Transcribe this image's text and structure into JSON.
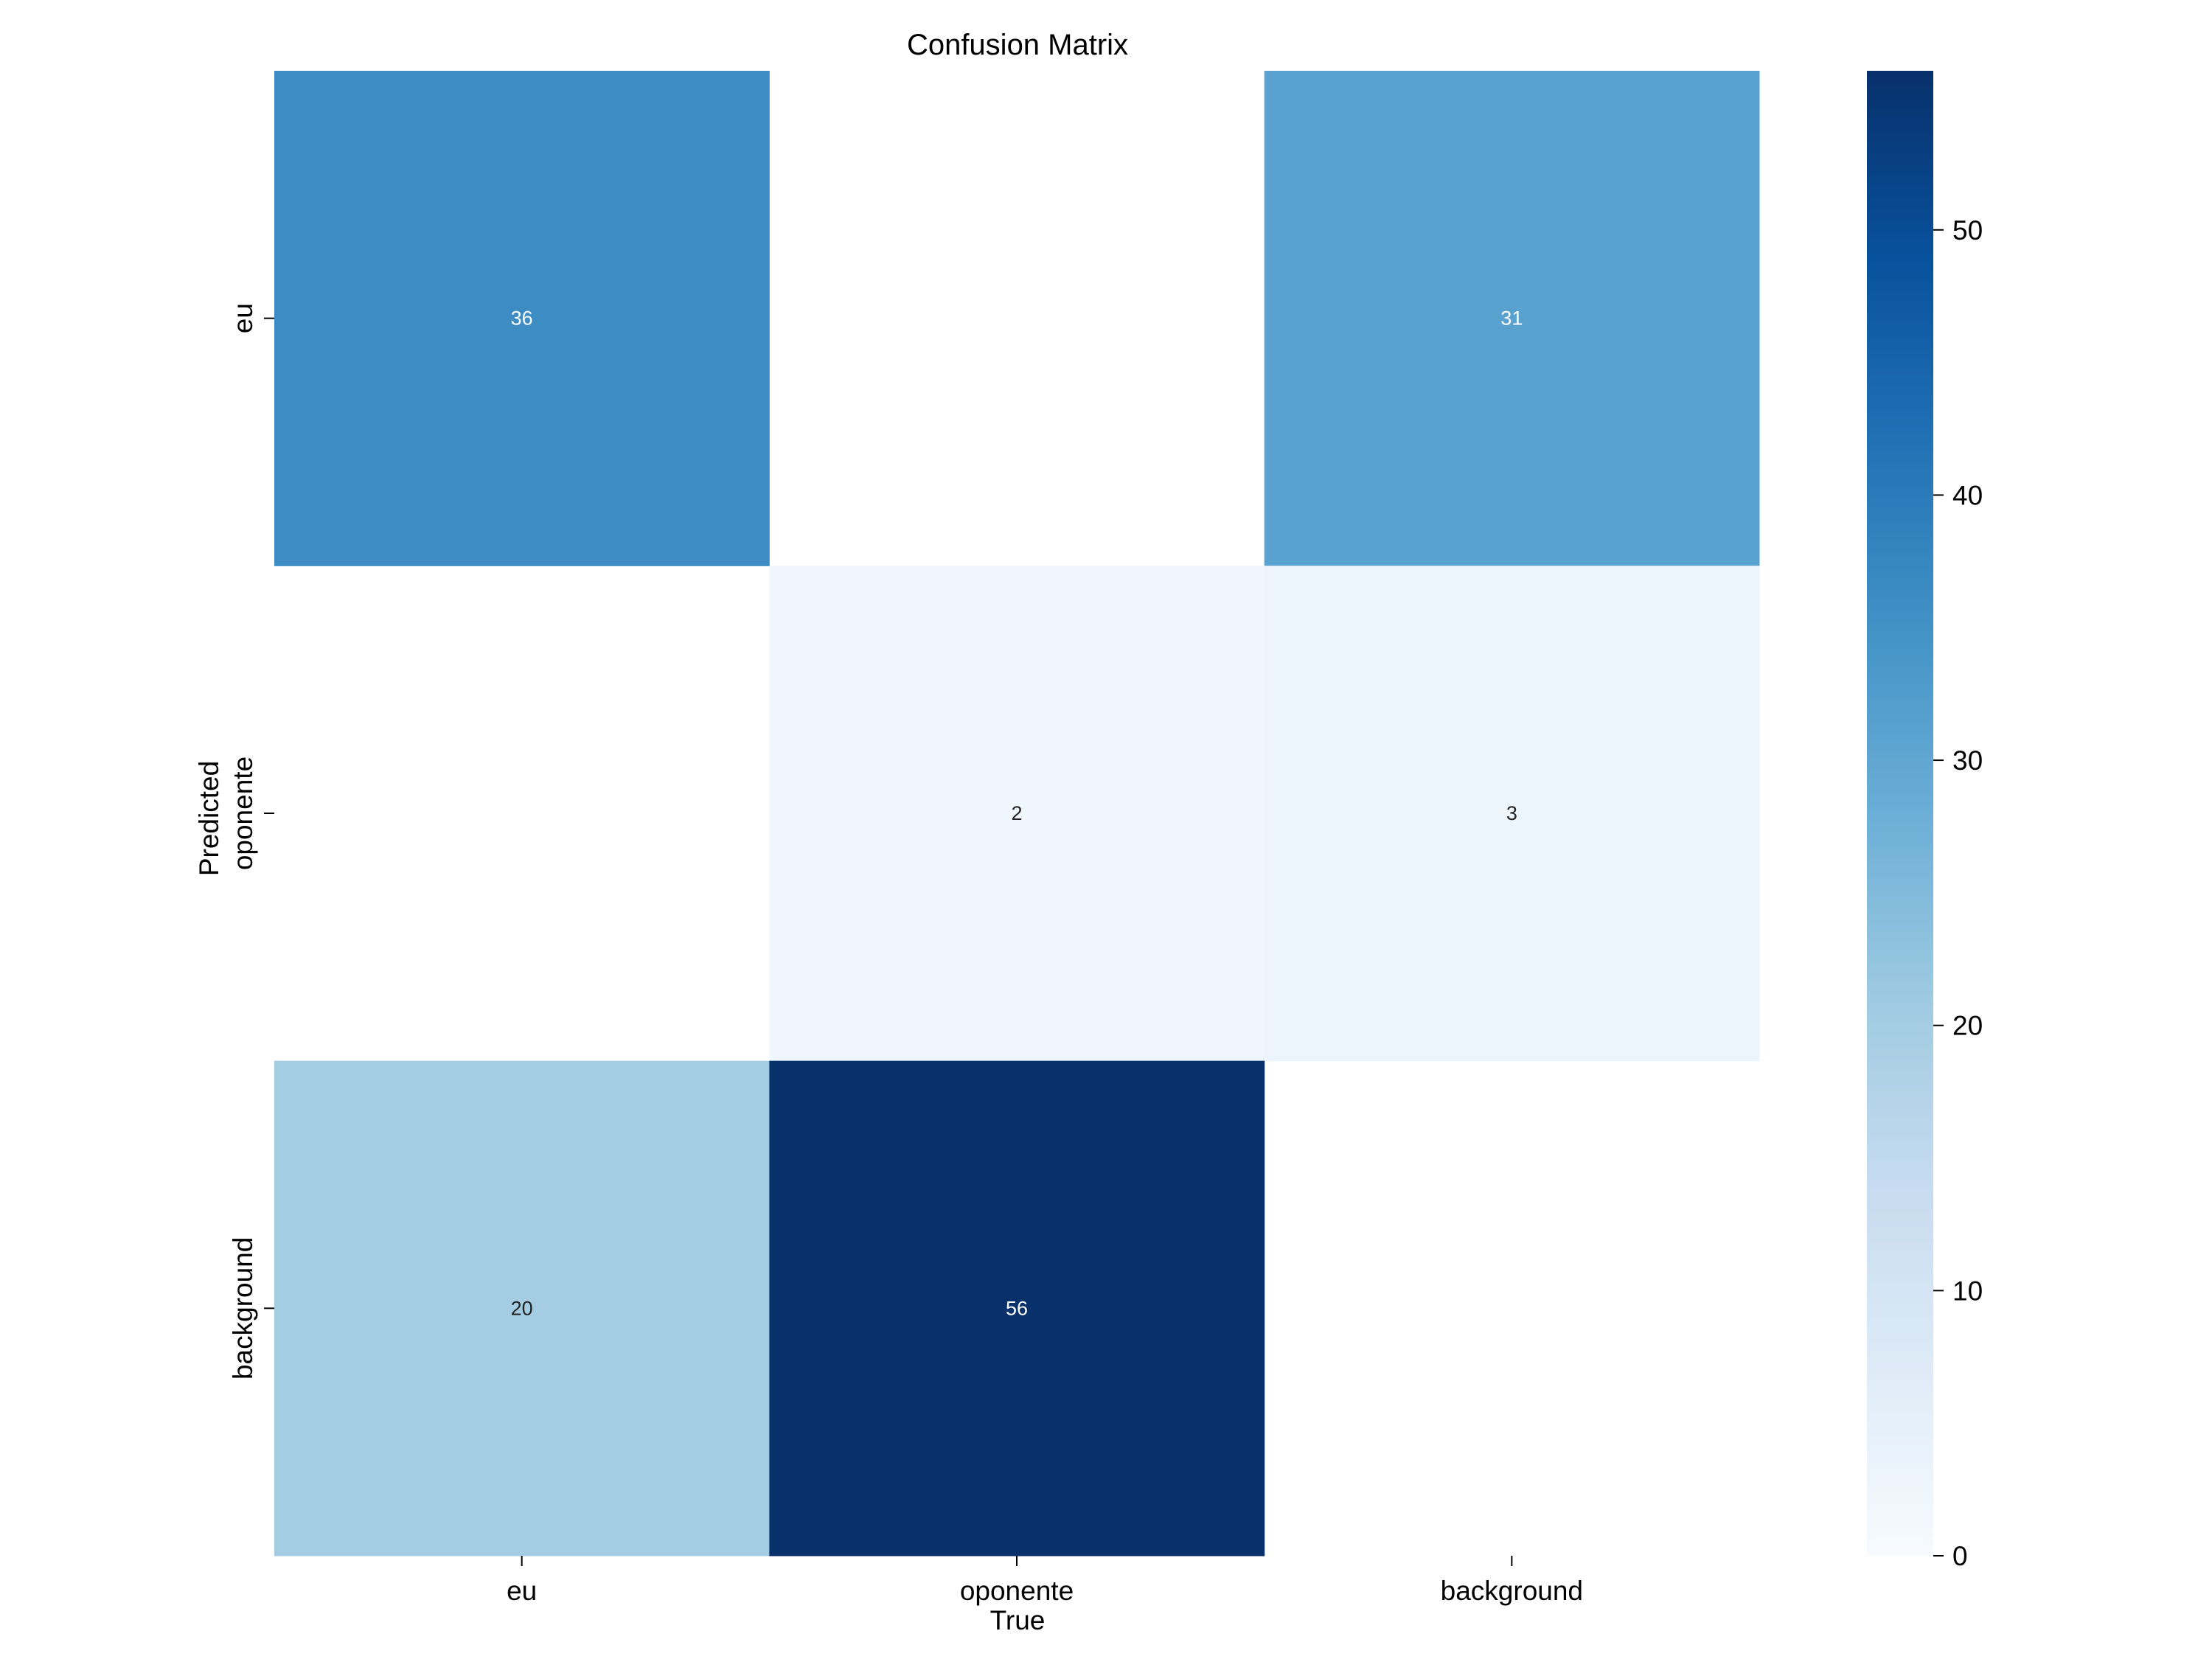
{
  "chart_data": {
    "type": "heatmap",
    "title": "Confusion Matrix",
    "xlabel": "True",
    "ylabel": "Predicted",
    "x_categories": [
      "eu",
      "oponente",
      "background"
    ],
    "y_categories": [
      "eu",
      "oponente",
      "background"
    ],
    "values": [
      [
        36,
        null,
        31
      ],
      [
        null,
        2,
        3
      ],
      [
        20,
        56,
        null
      ]
    ],
    "colorbar": {
      "min": 0,
      "max": 56,
      "ticks": [
        0,
        10,
        20,
        30,
        40,
        50
      ]
    },
    "colormap": "Blues",
    "grid": false
  }
}
